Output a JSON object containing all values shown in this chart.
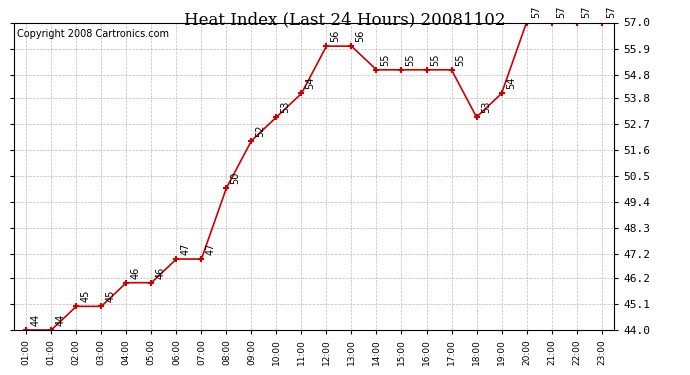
{
  "title": "Heat Index (Last 24 Hours) 20081102",
  "copyright": "Copyright 2008 Cartronics.com",
  "x_labels": [
    "01:00",
    "01:00",
    "02:00",
    "03:00",
    "04:00",
    "05:00",
    "06:00",
    "07:00",
    "08:00",
    "09:00",
    "10:00",
    "11:00",
    "12:00",
    "13:00",
    "14:00",
    "15:00",
    "16:00",
    "17:00",
    "18:00",
    "19:00",
    "20:00",
    "21:00",
    "22:00",
    "23:00"
  ],
  "values": [
    44,
    44,
    45,
    45,
    46,
    46,
    47,
    47,
    50,
    52,
    53,
    54,
    56,
    56,
    55,
    55,
    55,
    55,
    53,
    54,
    57,
    57,
    57,
    57
  ],
  "value_labels": [
    "44",
    "44",
    "45",
    "45",
    "46",
    "46",
    "47",
    "47",
    "50",
    "52",
    "53",
    "54",
    "56",
    "56",
    "55",
    "55",
    "55",
    "55",
    "53",
    "54",
    "57",
    "57",
    "57",
    "57"
  ],
  "ylim": [
    44.0,
    57.0
  ],
  "yticks": [
    44.0,
    45.1,
    46.2,
    47.2,
    48.3,
    49.4,
    50.5,
    51.6,
    52.7,
    53.8,
    54.8,
    55.9,
    57.0
  ],
  "line_color": "#cc0000",
  "marker_color": "#cc0000",
  "bg_color": "#ffffff",
  "grid_color": "#bbbbbb",
  "title_fontsize": 12,
  "label_fontsize": 7,
  "copyright_fontsize": 7
}
